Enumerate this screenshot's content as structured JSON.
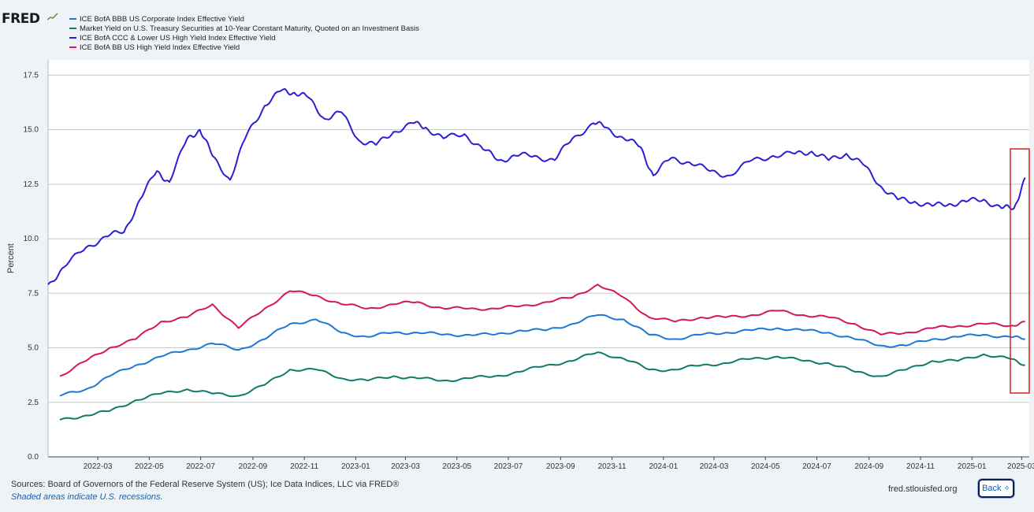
{
  "app": {
    "logo_text": "FRED",
    "logo_icon": "chart-trend-icon",
    "back_label": "Back",
    "back_icon": "expand-arrows-icon",
    "sources": "Sources: Board of Governors of the Federal Reserve System (US); Ice Data Indices, LLC via FRED®",
    "recession_note": "Shaded areas indicate U.S. recessions.",
    "site": "fred.stlouisfed.org"
  },
  "chart_data": {
    "type": "line",
    "title": "",
    "xlabel": "",
    "ylabel": "Percent",
    "ylim": [
      0,
      18.2
    ],
    "yticks": [
      "0.0",
      "2.5",
      "5.0",
      "7.5",
      "10.0",
      "12.5",
      "15.0",
      "17.5"
    ],
    "xticks": [
      "2022-03",
      "2022-05",
      "2022-07",
      "2022-09",
      "2022-11",
      "2023-01",
      "2023-03",
      "2023-05",
      "2023-07",
      "2023-09",
      "2023-11",
      "2024-01",
      "2024-03",
      "2024-05",
      "2024-07",
      "2024-09",
      "2024-11",
      "2025-01",
      "2025-03"
    ],
    "grid": true,
    "legend_placement": "top-left",
    "highlight_annotation": "red box around most recent data (Feb–Mar 2025)",
    "series": [
      {
        "name": "ICE BofA BBB US Corporate Index Effective Yield",
        "color": "#1f77d4",
        "x": [
          "2022-01-15",
          "2022-02-15",
          "2022-03-15",
          "2022-04-15",
          "2022-05-15",
          "2022-06-15",
          "2022-07-15",
          "2022-08-15",
          "2022-09-15",
          "2022-10-15",
          "2022-11-15",
          "2022-12-15",
          "2023-01-15",
          "2023-02-15",
          "2023-03-15",
          "2023-04-15",
          "2023-05-15",
          "2023-06-15",
          "2023-07-15",
          "2023-08-15",
          "2023-09-15",
          "2023-10-15",
          "2023-11-15",
          "2023-12-15",
          "2024-01-15",
          "2024-02-15",
          "2024-03-15",
          "2024-04-15",
          "2024-05-15",
          "2024-06-15",
          "2024-07-15",
          "2024-08-15",
          "2024-09-15",
          "2024-10-15",
          "2024-11-15",
          "2024-12-15",
          "2025-01-15",
          "2025-02-15",
          "2025-03-05"
        ],
        "values": [
          2.8,
          3.1,
          3.7,
          4.2,
          4.6,
          4.9,
          5.2,
          4.9,
          5.4,
          6.1,
          6.3,
          5.7,
          5.5,
          5.7,
          5.7,
          5.6,
          5.6,
          5.6,
          5.8,
          5.8,
          6.1,
          6.5,
          6.3,
          5.6,
          5.4,
          5.6,
          5.7,
          5.8,
          5.9,
          5.8,
          5.7,
          5.4,
          5.1,
          5.1,
          5.4,
          5.5,
          5.6,
          5.5,
          5.4
        ]
      },
      {
        "name": "Market Yield on U.S. Treasury Securities at 10-Year Constant Maturity, Quoted on an Investment Basis",
        "color": "#0f7a6a",
        "x": [
          "2022-01-15",
          "2022-02-15",
          "2022-03-15",
          "2022-04-15",
          "2022-05-15",
          "2022-06-15",
          "2022-07-15",
          "2022-08-15",
          "2022-09-15",
          "2022-10-15",
          "2022-11-15",
          "2022-12-15",
          "2023-01-15",
          "2023-02-15",
          "2023-03-15",
          "2023-04-15",
          "2023-05-15",
          "2023-06-15",
          "2023-07-15",
          "2023-08-15",
          "2023-09-15",
          "2023-10-15",
          "2023-11-15",
          "2023-12-15",
          "2024-01-15",
          "2024-02-15",
          "2024-03-15",
          "2024-04-15",
          "2024-05-15",
          "2024-06-15",
          "2024-07-15",
          "2024-08-15",
          "2024-09-15",
          "2024-10-15",
          "2024-11-15",
          "2024-12-15",
          "2025-01-15",
          "2025-02-15",
          "2025-03-05"
        ],
        "values": [
          1.7,
          1.9,
          2.1,
          2.6,
          2.9,
          3.1,
          2.9,
          2.8,
          3.3,
          4.0,
          4.0,
          3.6,
          3.5,
          3.7,
          3.6,
          3.5,
          3.6,
          3.7,
          3.9,
          4.2,
          4.4,
          4.8,
          4.5,
          4.0,
          4.0,
          4.2,
          4.3,
          4.5,
          4.6,
          4.4,
          4.3,
          3.9,
          3.7,
          4.0,
          4.4,
          4.4,
          4.7,
          4.5,
          4.2
        ]
      },
      {
        "name": "ICE BofA CCC & Lower US High Yield Index Effective Yield",
        "color": "#2b1fd6",
        "x": [
          "2022-01-01",
          "2022-01-20",
          "2022-02-15",
          "2022-03-10",
          "2022-04-01",
          "2022-04-20",
          "2022-05-10",
          "2022-05-25",
          "2022-06-15",
          "2022-06-30",
          "2022-07-15",
          "2022-08-05",
          "2022-08-25",
          "2022-09-15",
          "2022-10-05",
          "2022-10-20",
          "2022-11-05",
          "2022-11-25",
          "2022-12-15",
          "2023-01-05",
          "2023-01-25",
          "2023-02-15",
          "2023-03-10",
          "2023-03-25",
          "2023-04-15",
          "2023-05-10",
          "2023-06-01",
          "2023-06-20",
          "2023-07-10",
          "2023-08-01",
          "2023-08-25",
          "2023-09-15",
          "2023-10-10",
          "2023-10-25",
          "2023-11-15",
          "2023-12-05",
          "2023-12-20",
          "2024-01-10",
          "2024-02-01",
          "2024-02-25",
          "2024-03-20",
          "2024-04-15",
          "2024-05-10",
          "2024-06-05",
          "2024-06-25",
          "2024-07-15",
          "2024-08-05",
          "2024-08-25",
          "2024-09-15",
          "2024-10-05",
          "2024-10-25",
          "2024-11-15",
          "2024-12-05",
          "2024-12-25",
          "2025-01-15",
          "2025-02-05",
          "2025-02-20",
          "2025-03-05"
        ],
        "values": [
          7.9,
          8.7,
          9.6,
          10.1,
          10.3,
          11.8,
          13.1,
          12.6,
          14.6,
          15.0,
          13.8,
          12.7,
          14.8,
          16.1,
          16.8,
          16.7,
          16.5,
          15.5,
          15.8,
          14.5,
          14.3,
          14.9,
          15.3,
          15.1,
          14.6,
          14.8,
          14.1,
          13.6,
          13.8,
          13.8,
          13.6,
          14.6,
          15.3,
          15.1,
          14.6,
          14.2,
          12.9,
          13.7,
          13.5,
          13.1,
          12.9,
          13.6,
          13.8,
          13.9,
          14.0,
          13.6,
          13.9,
          13.4,
          12.4,
          11.8,
          11.7,
          11.5,
          11.6,
          11.7,
          11.8,
          11.4,
          11.4,
          12.8
        ]
      },
      {
        "name": "ICE BofA BB US High Yield Index Effective Yield",
        "color": "#d4175e",
        "x": [
          "2022-01-15",
          "2022-02-15",
          "2022-03-15",
          "2022-04-15",
          "2022-05-15",
          "2022-06-15",
          "2022-07-15",
          "2022-08-15",
          "2022-09-15",
          "2022-10-15",
          "2022-11-15",
          "2022-12-15",
          "2023-01-15",
          "2023-02-15",
          "2023-03-15",
          "2023-04-15",
          "2023-05-15",
          "2023-06-15",
          "2023-07-15",
          "2023-08-15",
          "2023-09-15",
          "2023-10-15",
          "2023-11-15",
          "2023-12-15",
          "2024-01-15",
          "2024-02-15",
          "2024-03-15",
          "2024-04-15",
          "2024-05-15",
          "2024-06-15",
          "2024-07-15",
          "2024-08-15",
          "2024-09-15",
          "2024-10-15",
          "2024-11-15",
          "2024-12-15",
          "2025-01-15",
          "2025-02-15",
          "2025-03-05"
        ],
        "values": [
          3.7,
          4.4,
          5.0,
          5.4,
          6.2,
          6.4,
          7.0,
          5.9,
          6.8,
          7.6,
          7.4,
          7.0,
          6.8,
          7.0,
          7.1,
          6.8,
          6.8,
          6.8,
          6.9,
          7.1,
          7.3,
          7.9,
          7.3,
          6.4,
          6.2,
          6.4,
          6.4,
          6.5,
          6.7,
          6.5,
          6.4,
          6.1,
          5.6,
          5.7,
          5.9,
          6.0,
          6.1,
          6.0,
          6.2
        ]
      }
    ]
  }
}
